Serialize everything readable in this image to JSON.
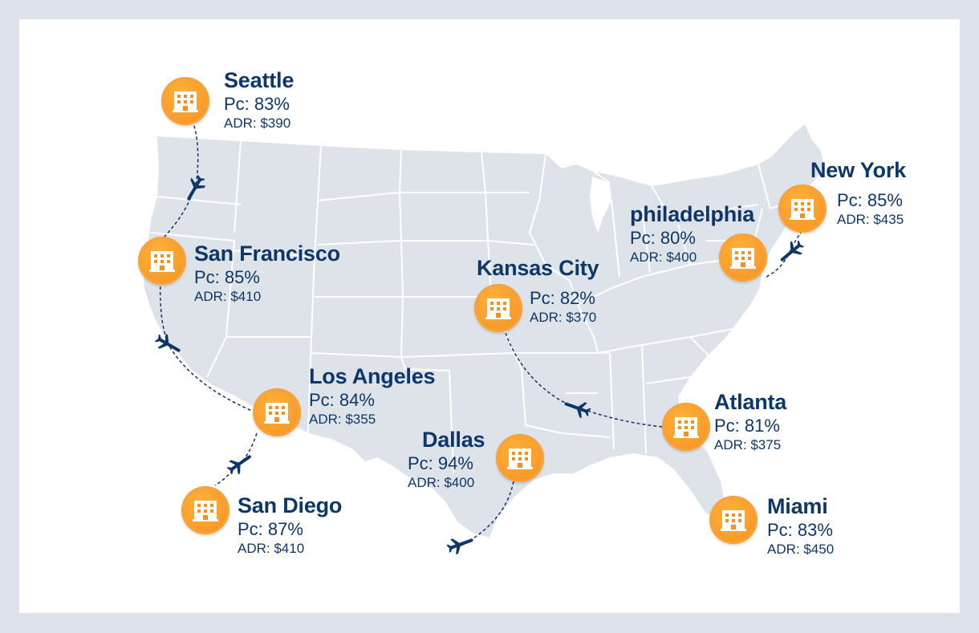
{
  "colors": {
    "map_fill": "#dee3ea",
    "state_line": "#ffffff",
    "text": "#0d3768",
    "marker": "#f5901f",
    "route": "#0d3768",
    "frame": "#dde2ea"
  },
  "map": {
    "icon": "hotel-building-icon",
    "route_icon": "airplane-icon"
  },
  "cities": [
    {
      "id": "seattle",
      "name": "Seattle",
      "pc": "Pc: 83%",
      "adr": "ADR: $390"
    },
    {
      "id": "san-francisco",
      "name": "San Francisco",
      "pc": "Pc: 85%",
      "adr": "ADR: $410"
    },
    {
      "id": "los-angeles",
      "name": "Los Angeles",
      "pc": "Pc: 84%",
      "adr": "ADR: $355"
    },
    {
      "id": "san-diego",
      "name": "San Diego",
      "pc": "Pc: 87%",
      "adr": "ADR: $410"
    },
    {
      "id": "dallas",
      "name": "Dallas",
      "pc": "Pc: 94%",
      "adr": "ADR: $400"
    },
    {
      "id": "kansas-city",
      "name": "Kansas City",
      "pc": "Pc: 82%",
      "adr": "ADR: $370"
    },
    {
      "id": "atlanta",
      "name": "Atlanta",
      "pc": "Pc: 81%",
      "adr": "ADR: $375"
    },
    {
      "id": "miami",
      "name": "Miami",
      "pc": "Pc: 83%",
      "adr": "ADR: $450"
    },
    {
      "id": "philadelphia",
      "name": "philadelphia",
      "pc": "Pc: 80%",
      "adr": "ADR: $400"
    },
    {
      "id": "new-york",
      "name": "New York",
      "pc": "Pc: 85%",
      "adr": "ADR: $435"
    }
  ]
}
